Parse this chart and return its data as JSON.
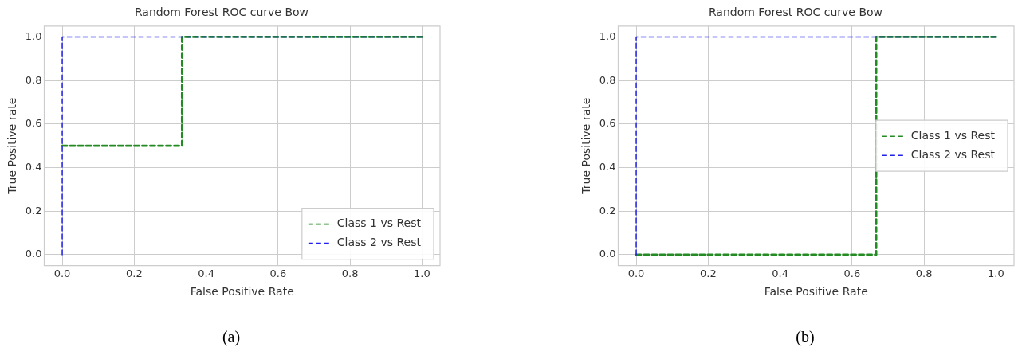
{
  "chart_data": [
    {
      "type": "line",
      "title": "Random Forest ROC curve Bow",
      "xlabel": "False Positive Rate",
      "ylabel": "True Positive rate",
      "xlim": [
        -0.05,
        1.05
      ],
      "ylim": [
        -0.05,
        1.05
      ],
      "xticks": [
        {
          "value": 0,
          "label": "0.0"
        },
        {
          "value": 0.2,
          "label": "0.2"
        },
        {
          "value": 0.4,
          "label": "0.4"
        },
        {
          "value": 0.6,
          "label": "0.6"
        },
        {
          "value": 0.8,
          "label": "0.8"
        },
        {
          "value": 1,
          "label": "1.0"
        }
      ],
      "yticks": [
        {
          "value": 0,
          "label": "0.0"
        },
        {
          "value": 0.2,
          "label": "0.2"
        },
        {
          "value": 0.4,
          "label": "0.4"
        },
        {
          "value": 0.6,
          "label": "0.6"
        },
        {
          "value": 0.8,
          "label": "0.8"
        },
        {
          "value": 1,
          "label": "1.0"
        }
      ],
      "grid": true,
      "legend": "bottom right",
      "line_style": "dashed",
      "series": [
        {
          "name": "Class 1 vs Rest",
          "color": "#228b22",
          "x": [
            0,
            0.333,
            0.333,
            1
          ],
          "values": [
            0.5,
            0.5,
            1,
            1
          ]
        },
        {
          "name": "Class 2 vs Rest",
          "color": "#1f1fee",
          "x": [
            0,
            0,
            1
          ],
          "values": [
            0,
            1,
            1
          ]
        }
      ],
      "annotations": [
        "(a)"
      ]
    },
    {
      "type": "line",
      "title": "Random Forest ROC curve Bow",
      "xlabel": "False Positive Rate",
      "ylabel": "True Positive rate",
      "xlim": [
        -0.05,
        1.05
      ],
      "ylim": [
        -0.05,
        1.05
      ],
      "xticks": [
        {
          "value": 0,
          "label": "0.0"
        },
        {
          "value": 0.2,
          "label": "0.2"
        },
        {
          "value": 0.4,
          "label": "0.4"
        },
        {
          "value": 0.6,
          "label": "0.6"
        },
        {
          "value": 0.8,
          "label": "0.8"
        },
        {
          "value": 1,
          "label": "1.0"
        }
      ],
      "yticks": [
        {
          "value": 0,
          "label": "0.0"
        },
        {
          "value": 0.2,
          "label": "0.2"
        },
        {
          "value": 0.4,
          "label": "0.4"
        },
        {
          "value": 0.6,
          "label": "0.6"
        },
        {
          "value": 0.8,
          "label": "0.8"
        },
        {
          "value": 1,
          "label": "1.0"
        }
      ],
      "grid": true,
      "legend": "center right",
      "line_style": "dashed",
      "series": [
        {
          "name": "Class 1 vs Rest",
          "color": "#228b22",
          "x": [
            0,
            0.667,
            0.667,
            1
          ],
          "values": [
            0,
            0,
            1,
            1
          ]
        },
        {
          "name": "Class 2 vs Rest",
          "color": "#1f1fee",
          "x": [
            0,
            0,
            1
          ],
          "values": [
            0,
            1,
            1
          ]
        }
      ],
      "annotations": [
        "(b)"
      ]
    }
  ]
}
